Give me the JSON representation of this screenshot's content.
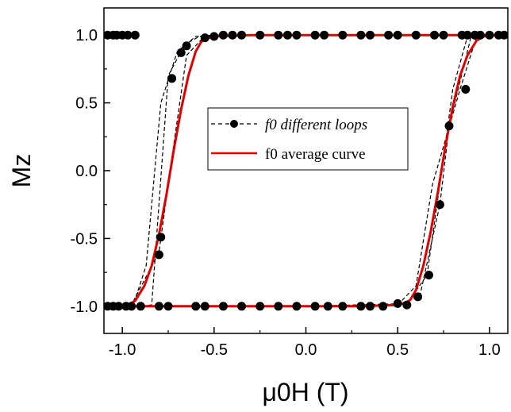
{
  "chart_data": {
    "type": "line",
    "xlabel": "μ0H (T)",
    "ylabel": "Mz",
    "xlim": [
      -1.1,
      1.1
    ],
    "ylim": [
      -1.2,
      1.2
    ],
    "xticks": [
      "-1.0",
      "-0.5",
      "0.0",
      "0.5",
      "1.0"
    ],
    "yticks": [
      "-1.0",
      "-0.5",
      "0.0",
      "0.5",
      "1.0"
    ],
    "grid": false,
    "legend_position": "center",
    "legend": [
      {
        "label": "f0 different loops",
        "style": "dashed-markers",
        "color": "#000000"
      },
      {
        "label": "f0  average curve",
        "style": "solid",
        "color": "#e00000"
      }
    ],
    "series": [
      {
        "name": "f0 different loops",
        "color": "#000000",
        "loops": [
          {
            "x": [
              -1.1,
              -1.0,
              -0.9,
              -0.84,
              -0.75,
              -0.66,
              -0.58,
              -0.4,
              0.0,
              0.4,
              0.6,
              0.9,
              1.1
            ],
            "y": [
              -1,
              -1,
              -1,
              -0.99,
              0.7,
              0.93,
              0.99,
              1,
              1,
              1,
              1,
              1,
              1
            ]
          },
          {
            "x": [
              -1.1,
              -1.0,
              -0.94,
              -0.87,
              -0.79,
              -0.7,
              -0.6,
              -0.5,
              0.0,
              0.5,
              0.9,
              1.1
            ],
            "y": [
              -1,
              -1,
              -0.99,
              -0.7,
              0.5,
              0.88,
              0.99,
              1,
              1,
              1,
              1,
              1
            ]
          },
          {
            "x": [
              -1.1,
              -1.0,
              -0.95,
              -0.8,
              -0.74,
              -0.65,
              -0.56,
              -0.5,
              0.0,
              0.5,
              0.9,
              1.1
            ],
            "y": [
              -1,
              -1,
              -0.99,
              -0.6,
              0.0,
              0.85,
              0.98,
              1,
              1,
              1,
              1,
              1
            ]
          },
          {
            "x": [
              1.1,
              1.0,
              0.95,
              0.9,
              0.78,
              0.73,
              0.62,
              0.5,
              0.0,
              -0.5,
              -0.9,
              -1.1
            ],
            "y": [
              1,
              1,
              1,
              0.99,
              0.33,
              -0.25,
              -0.93,
              -0.99,
              -1,
              -1,
              -1,
              -1
            ]
          },
          {
            "x": [
              1.1,
              1.0,
              0.92,
              0.88,
              0.8,
              0.74,
              0.66,
              0.55,
              0.0,
              -0.5,
              -0.9,
              -1.1
            ],
            "y": [
              1,
              1,
              1,
              0.99,
              0.6,
              0.0,
              -0.77,
              -0.98,
              -1,
              -1,
              -1,
              -1
            ]
          },
          {
            "x": [
              1.1,
              1.0,
              0.97,
              0.93,
              0.84,
              0.69,
              0.6,
              0.5,
              0.0,
              -0.5,
              -0.9,
              -1.1
            ],
            "y": [
              1,
              1,
              1,
              0.99,
              0.6,
              -0.1,
              -0.85,
              -0.99,
              -1,
              -1,
              -1,
              -1
            ]
          }
        ],
        "markers": {
          "x": [
            -1.08,
            -1.05,
            -1.03,
            -1.0,
            -0.97,
            -0.93,
            -0.8,
            -0.79,
            -0.73,
            -0.68,
            -0.65,
            -0.55,
            -0.5,
            -0.45,
            -0.4,
            -0.35,
            -0.25,
            -0.15,
            -0.1,
            -0.05,
            0.05,
            0.1,
            0.2,
            0.3,
            0.35,
            0.45,
            0.5,
            0.6,
            0.7,
            0.75,
            0.85,
            0.88,
            0.92,
            0.95,
            1.0,
            1.05,
            1.08,
            -1.08,
            -1.05,
            -1.02,
            -0.98,
            -0.95,
            -0.9,
            -0.8,
            -0.75,
            -0.6,
            -0.55,
            -0.45,
            -0.35,
            -0.25,
            -0.15,
            -0.05,
            0.05,
            0.12,
            0.2,
            0.3,
            0.35,
            0.42,
            0.5,
            0.55,
            0.61,
            0.67,
            0.73,
            0.78,
            0.87
          ],
          "y": [
            1,
            1,
            1,
            1,
            1,
            1,
            -0.62,
            -0.49,
            0.68,
            0.87,
            0.92,
            0.98,
            0.99,
            1,
            1,
            1,
            1,
            1,
            1,
            1,
            1,
            1,
            1,
            1,
            1,
            1,
            1,
            1,
            1,
            1,
            1,
            1,
            1,
            1,
            1,
            1,
            1,
            -1,
            -1,
            -1,
            -1,
            -1,
            -1,
            -1,
            -1,
            -1,
            -1,
            -1,
            -1,
            -1,
            -1,
            -1,
            -1,
            -1,
            -1,
            -1,
            -1,
            -1,
            -0.98,
            -0.99,
            -0.93,
            -0.77,
            -0.25,
            0.33,
            0.6
          ]
        }
      },
      {
        "name": "f0  average curve",
        "color": "#e00000",
        "branches": [
          {
            "x": [
              -1.1,
              -1.0,
              -0.97,
              -0.93,
              -0.88,
              -0.84,
              -0.8,
              -0.76,
              -0.72,
              -0.68,
              -0.64,
              -0.6,
              -0.57,
              -0.55,
              -0.5,
              -0.3,
              0.0,
              0.5,
              0.9,
              1.1
            ],
            "y": [
              -1,
              -1,
              -0.99,
              -0.96,
              -0.85,
              -0.7,
              -0.47,
              -0.18,
              0.15,
              0.45,
              0.7,
              0.88,
              0.95,
              0.97,
              0.99,
              1,
              1,
              1,
              1,
              1
            ]
          },
          {
            "x": [
              1.1,
              1.0,
              0.97,
              0.93,
              0.88,
              0.84,
              0.8,
              0.76,
              0.72,
              0.68,
              0.64,
              0.6,
              0.57,
              0.55,
              0.5,
              0.3,
              0.0,
              -0.5,
              -0.9,
              -1.1
            ],
            "y": [
              1,
              1,
              0.99,
              0.96,
              0.85,
              0.7,
              0.47,
              0.18,
              -0.15,
              -0.45,
              -0.7,
              -0.88,
              -0.95,
              -0.97,
              -0.99,
              -1,
              -1,
              -1,
              -1,
              -1
            ]
          }
        ]
      }
    ]
  }
}
